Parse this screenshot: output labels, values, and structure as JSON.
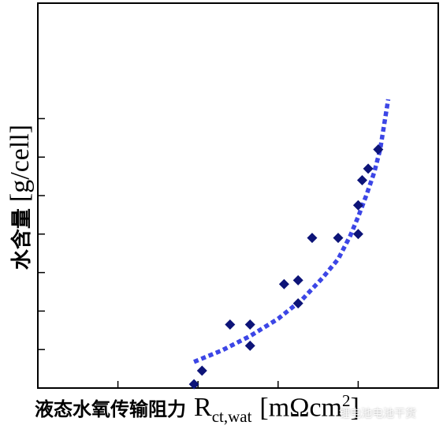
{
  "chart_data": {
    "type": "scatter",
    "title": "",
    "ylabel": "水含量 [g/cell]",
    "ylabel_cn": "水含量",
    "ylabel_unit": "[g/cell]",
    "xlabel_cn": "液态水氧传输阻力",
    "xlabel_symbol": "R",
    "xlabel_sub": "ct,wat",
    "xlabel_unit_open": "[mΩcm",
    "xlabel_unit_sup": "2",
    "xlabel_unit_close": "]",
    "xlim": [
      0,
      10
    ],
    "ylim": [
      0,
      10
    ],
    "xticks": [
      2,
      4,
      6,
      8
    ],
    "yticks": [
      1,
      2,
      3,
      4,
      5,
      6,
      7
    ],
    "grid": false,
    "series": [
      {
        "marker": "diamond",
        "color": "#0d1478",
        "x": [
          3.9,
          4.1,
          4.8,
          5.3,
          5.3,
          6.15,
          6.5,
          6.5,
          6.85,
          7.5,
          8.0,
          8.0,
          8.1,
          8.25,
          8.5
        ],
        "y": [
          0.1,
          0.45,
          1.65,
          1.1,
          1.65,
          2.7,
          2.2,
          2.8,
          3.9,
          3.9,
          4.0,
          4.75,
          5.4,
          5.7,
          6.2
        ]
      },
      {
        "line": "dotted-fit",
        "color": "#3c46e6",
        "x": [
          3.9,
          4.6,
          5.3,
          6.0,
          6.6,
          7.1,
          7.5,
          7.8,
          8.0,
          8.2,
          8.4,
          8.55,
          8.75
        ],
        "y": [
          0.68,
          0.98,
          1.35,
          1.8,
          2.3,
          2.85,
          3.35,
          3.95,
          4.45,
          5.0,
          5.6,
          6.2,
          7.5
        ]
      }
    ]
  },
  "watermark": "锂电池电池干货"
}
